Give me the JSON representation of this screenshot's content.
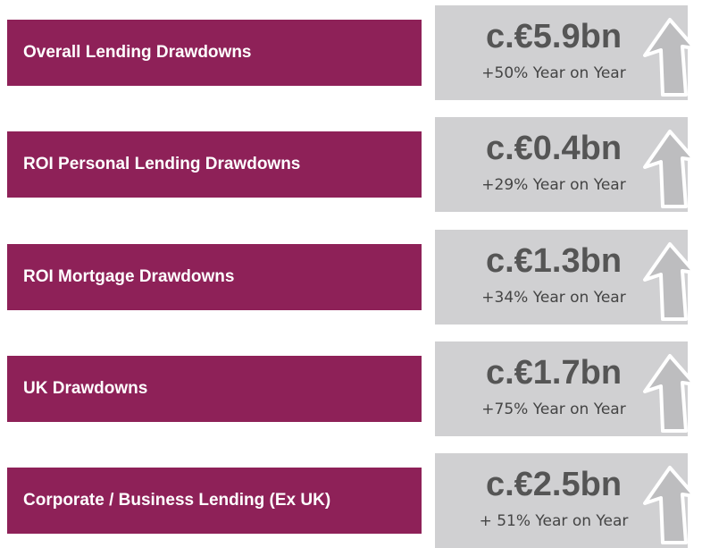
{
  "rows": [
    {
      "label": "Overall Lending Drawdowns",
      "value": "c.€5.9bn",
      "change": "+50% Year on Year"
    },
    {
      "label": "ROI Personal Lending Drawdowns",
      "value": "c.€0.4bn",
      "change": "+29% Year on Year"
    },
    {
      "label": "ROI Mortgage Drawdowns",
      "value": "c.€1.3bn",
      "change": "+34% Year on Year"
    },
    {
      "label": "UK Drawdowns",
      "value": "c.€1.7bn",
      "change": "+75% Year on Year"
    },
    {
      "label": "Corporate / Business Lending (Ex UK)",
      "value": "c.€2.5bn",
      "change": "+ 51% Year on Year"
    }
  ]
}
